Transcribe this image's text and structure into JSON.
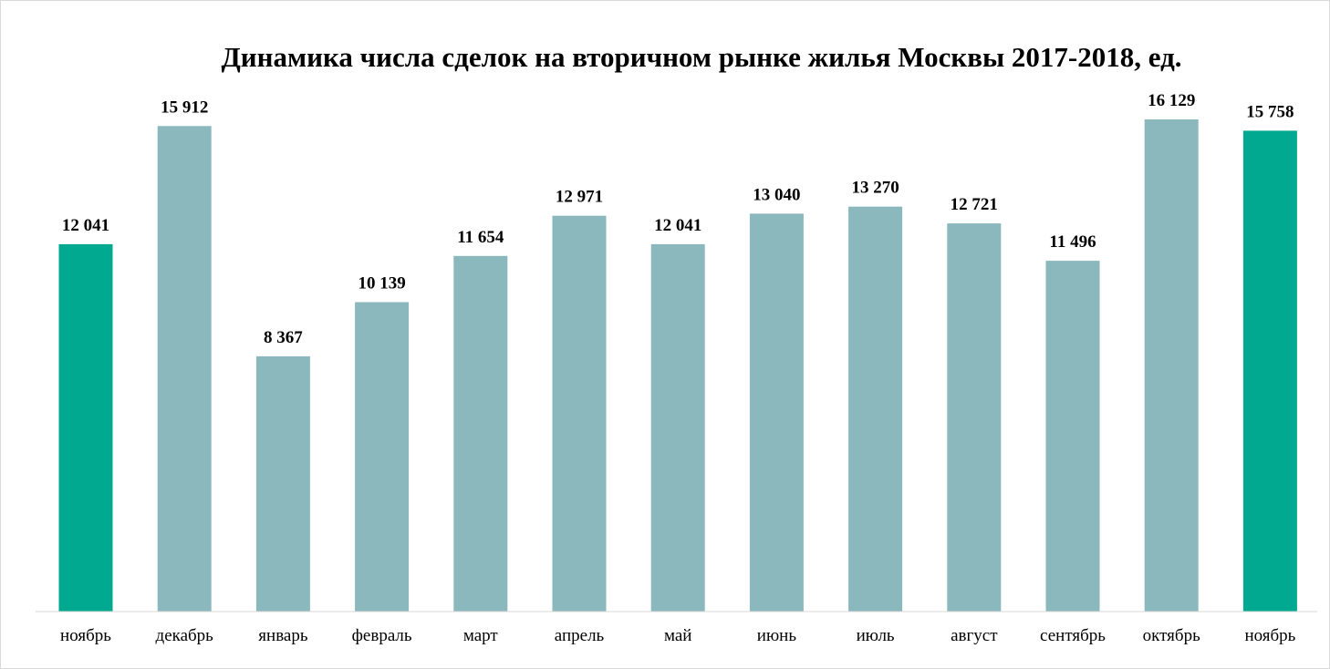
{
  "chart_data": {
    "type": "bar",
    "title": "Динамика числа сделок на вторичном рынке жилья Москвы 2017-2018, ед.",
    "categories": [
      "ноябрь",
      "декабрь",
      "январь",
      "февраль",
      "март",
      "апрель",
      "май",
      "июнь",
      "июль",
      "август",
      "сентябрь",
      "октябрь",
      "ноябрь"
    ],
    "values": [
      12041,
      15912,
      8367,
      10139,
      11654,
      12971,
      12041,
      13040,
      13270,
      12721,
      11496,
      16129,
      15758
    ],
    "value_labels": [
      "12 041",
      "15 912",
      "8 367",
      "10 139",
      "11 654",
      "12 971",
      "12 041",
      "13 040",
      "13 270",
      "12 721",
      "11 496",
      "16 129",
      "15 758"
    ],
    "highlighted": [
      true,
      false,
      false,
      false,
      false,
      false,
      false,
      false,
      false,
      false,
      false,
      false,
      true
    ],
    "colors": {
      "bar": "#8bb8bd",
      "highlight": "#00a98f",
      "axis": "#d9d9d9"
    },
    "ylim": [
      0,
      16129
    ],
    "grid": false,
    "legend": "none",
    "xlabel": "",
    "ylabel": ""
  }
}
